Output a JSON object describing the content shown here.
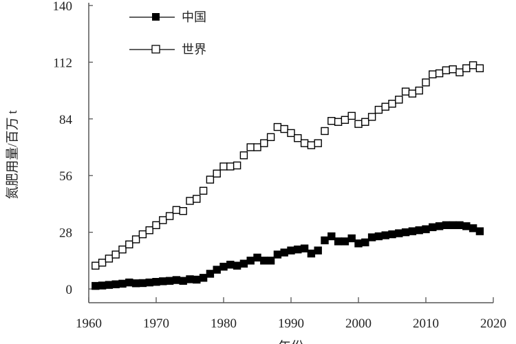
{
  "chart_data": {
    "type": "scatter",
    "title": "",
    "xlabel": "年份",
    "ylabel": "氮肥用量/百万 t",
    "xlim": [
      1960,
      2020
    ],
    "ylim": [
      0,
      140
    ],
    "xticks": [
      1960,
      1970,
      1980,
      1990,
      2000,
      2010,
      2020
    ],
    "yticks": [
      0,
      28,
      56,
      84,
      112,
      140
    ],
    "grid": false,
    "legend_position": "top-left",
    "x": [
      1961,
      1962,
      1963,
      1964,
      1965,
      1966,
      1967,
      1968,
      1969,
      1970,
      1971,
      1972,
      1973,
      1974,
      1975,
      1976,
      1977,
      1978,
      1979,
      1980,
      1981,
      1982,
      1983,
      1984,
      1985,
      1986,
      1987,
      1988,
      1989,
      1990,
      1991,
      1992,
      1993,
      1994,
      1995,
      1996,
      1997,
      1998,
      1999,
      2000,
      2001,
      2002,
      2003,
      2004,
      2005,
      2006,
      2007,
      2008,
      2009,
      2010,
      2011,
      2012,
      2013,
      2014,
      2015,
      2016,
      2017,
      2018
    ],
    "series": [
      {
        "name": "中国",
        "marker": "filled-square",
        "color": "#000000",
        "values": [
          1.5,
          1.7,
          2.0,
          2.3,
          2.6,
          3.2,
          2.8,
          2.9,
          3.2,
          3.5,
          3.8,
          4.0,
          4.4,
          4.0,
          4.8,
          4.6,
          5.5,
          7.5,
          9.5,
          11.0,
          12.0,
          11.5,
          12.5,
          14.0,
          15.5,
          14.0,
          14.0,
          17.0,
          18.0,
          19.0,
          19.5,
          20.0,
          17.5,
          19.0,
          24.0,
          26.0,
          23.5,
          23.5,
          25.0,
          22.5,
          23.0,
          25.5,
          26.0,
          26.5,
          27.0,
          27.5,
          28.0,
          28.5,
          29.0,
          29.5,
          30.5,
          31.0,
          31.5,
          31.5,
          31.5,
          31.0,
          30.0,
          28.5
        ]
      },
      {
        "name": "世界",
        "marker": "open-square",
        "color": "#000000",
        "values": [
          11.5,
          13.0,
          15.0,
          17.0,
          19.5,
          22.0,
          24.5,
          27.0,
          29.0,
          31.5,
          34.0,
          36.0,
          39.0,
          38.5,
          43.5,
          44.5,
          48.5,
          54.0,
          57.0,
          60.5,
          60.5,
          61.0,
          66.0,
          70.0,
          70.0,
          72.0,
          75.0,
          80.0,
          79.0,
          77.0,
          74.5,
          72.0,
          71.0,
          72.0,
          78.0,
          83.0,
          82.5,
          83.5,
          85.5,
          81.5,
          82.5,
          85.0,
          88.5,
          90.0,
          91.5,
          93.5,
          97.5,
          96.5,
          98.0,
          102.0,
          106.0,
          106.5,
          108.0,
          108.5,
          107.0,
          109.0,
          110.5,
          109.0
        ]
      }
    ]
  }
}
